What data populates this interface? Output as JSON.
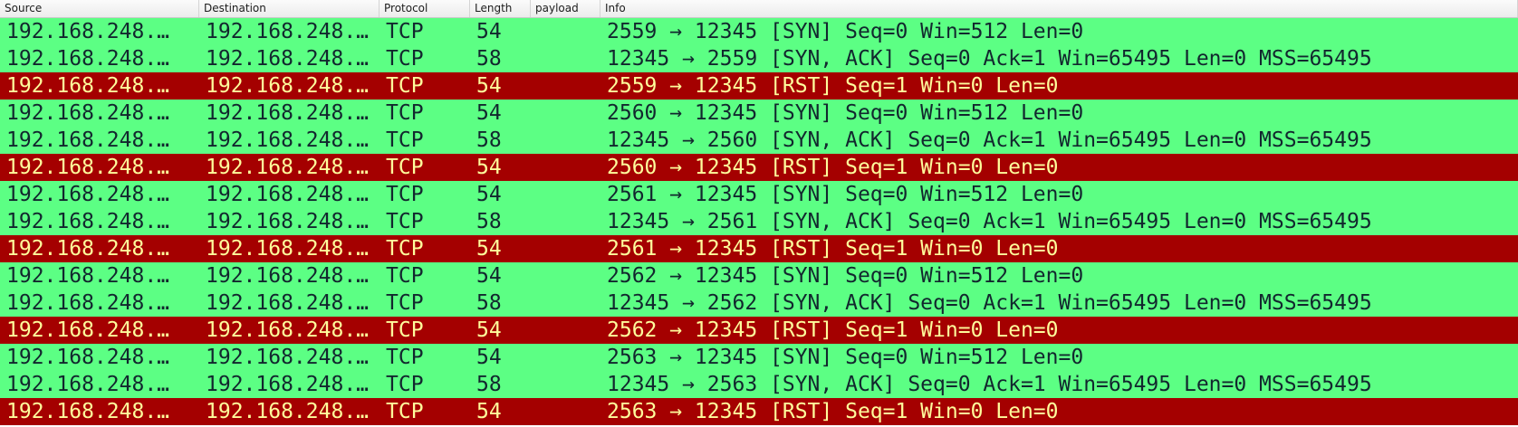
{
  "columns": {
    "source": "Source",
    "destination": "Destination",
    "protocol": "Protocol",
    "length": "Length",
    "payload": "payload",
    "info": "Info"
  },
  "colors": {
    "normal_bg": "#5cff84",
    "normal_fg": "#12272e",
    "rst_bg": "#a40000",
    "rst_fg": "#fffc9c"
  },
  "packets": [
    {
      "source": "192.168.248.…",
      "destination": "192.168.248.…",
      "protocol": "TCP",
      "length": "54",
      "payload": "",
      "info": "2559 → 12345 [SYN] Seq=0 Win=512 Len=0",
      "kind": "ok"
    },
    {
      "source": "192.168.248.…",
      "destination": "192.168.248.…",
      "protocol": "TCP",
      "length": "58",
      "payload": "",
      "info": "12345 → 2559 [SYN, ACK] Seq=0 Ack=1 Win=65495 Len=0 MSS=65495",
      "kind": "ok"
    },
    {
      "source": "192.168.248.…",
      "destination": "192.168.248.…",
      "protocol": "TCP",
      "length": "54",
      "payload": "",
      "info": "2559 → 12345 [RST] Seq=1 Win=0 Len=0",
      "kind": "rst"
    },
    {
      "source": "192.168.248.…",
      "destination": "192.168.248.…",
      "protocol": "TCP",
      "length": "54",
      "payload": "",
      "info": "2560 → 12345 [SYN] Seq=0 Win=512 Len=0",
      "kind": "ok"
    },
    {
      "source": "192.168.248.…",
      "destination": "192.168.248.…",
      "protocol": "TCP",
      "length": "58",
      "payload": "",
      "info": "12345 → 2560 [SYN, ACK] Seq=0 Ack=1 Win=65495 Len=0 MSS=65495",
      "kind": "ok"
    },
    {
      "source": "192.168.248.…",
      "destination": "192.168.248.…",
      "protocol": "TCP",
      "length": "54",
      "payload": "",
      "info": "2560 → 12345 [RST] Seq=1 Win=0 Len=0",
      "kind": "rst"
    },
    {
      "source": "192.168.248.…",
      "destination": "192.168.248.…",
      "protocol": "TCP",
      "length": "54",
      "payload": "",
      "info": "2561 → 12345 [SYN] Seq=0 Win=512 Len=0",
      "kind": "ok"
    },
    {
      "source": "192.168.248.…",
      "destination": "192.168.248.…",
      "protocol": "TCP",
      "length": "58",
      "payload": "",
      "info": "12345 → 2561 [SYN, ACK] Seq=0 Ack=1 Win=65495 Len=0 MSS=65495",
      "kind": "ok"
    },
    {
      "source": "192.168.248.…",
      "destination": "192.168.248.…",
      "protocol": "TCP",
      "length": "54",
      "payload": "",
      "info": "2561 → 12345 [RST] Seq=1 Win=0 Len=0",
      "kind": "rst"
    },
    {
      "source": "192.168.248.…",
      "destination": "192.168.248.…",
      "protocol": "TCP",
      "length": "54",
      "payload": "",
      "info": "2562 → 12345 [SYN] Seq=0 Win=512 Len=0",
      "kind": "ok"
    },
    {
      "source": "192.168.248.…",
      "destination": "192.168.248.…",
      "protocol": "TCP",
      "length": "58",
      "payload": "",
      "info": "12345 → 2562 [SYN, ACK] Seq=0 Ack=1 Win=65495 Len=0 MSS=65495",
      "kind": "ok"
    },
    {
      "source": "192.168.248.…",
      "destination": "192.168.248.…",
      "protocol": "TCP",
      "length": "54",
      "payload": "",
      "info": "2562 → 12345 [RST] Seq=1 Win=0 Len=0",
      "kind": "rst"
    },
    {
      "source": "192.168.248.…",
      "destination": "192.168.248.…",
      "protocol": "TCP",
      "length": "54",
      "payload": "",
      "info": "2563 → 12345 [SYN] Seq=0 Win=512 Len=0",
      "kind": "ok"
    },
    {
      "source": "192.168.248.…",
      "destination": "192.168.248.…",
      "protocol": "TCP",
      "length": "58",
      "payload": "",
      "info": "12345 → 2563 [SYN, ACK] Seq=0 Ack=1 Win=65495 Len=0 MSS=65495",
      "kind": "ok"
    },
    {
      "source": "192.168.248.…",
      "destination": "192.168.248.…",
      "protocol": "TCP",
      "length": "54",
      "payload": "",
      "info": "2563 → 12345 [RST] Seq=1 Win=0 Len=0",
      "kind": "rst"
    }
  ]
}
